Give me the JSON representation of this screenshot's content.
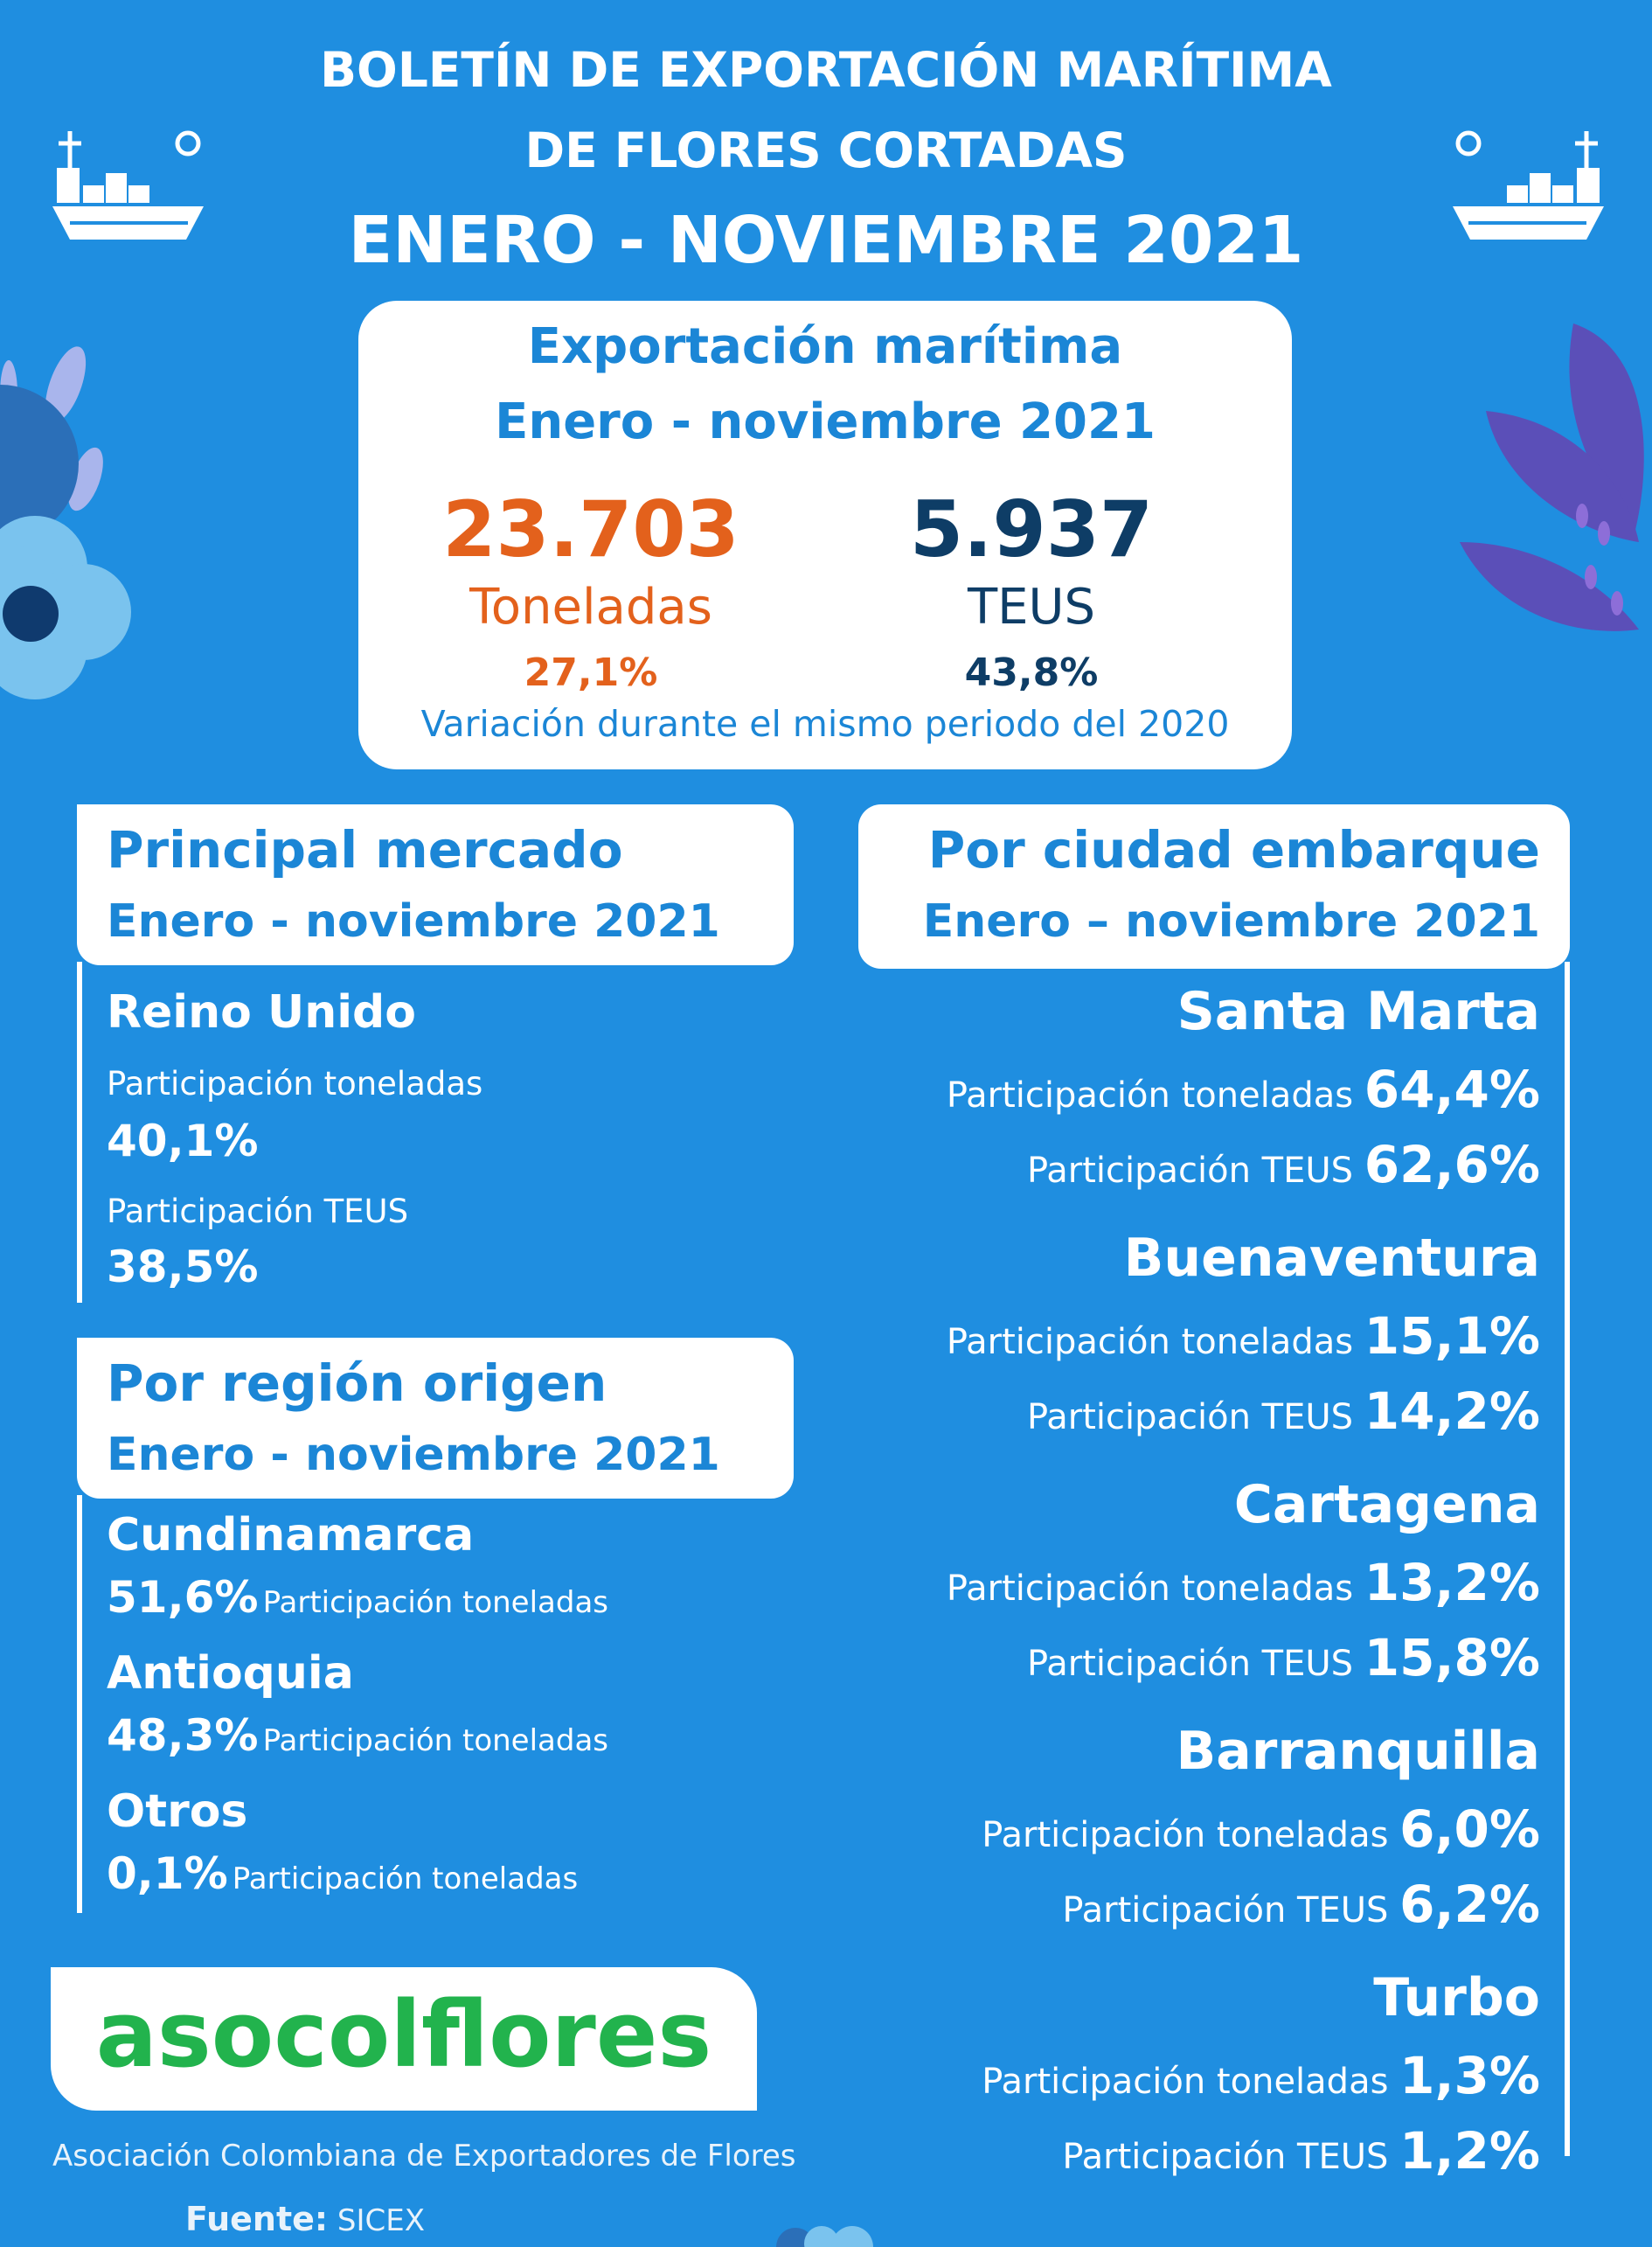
{
  "header": {
    "line1": "BOLETÍN DE EXPORTACIÓN MARÍTIMA",
    "line2": "DE FLORES CORTADAS",
    "line3": "ENERO - NOVIEMBRE 2021"
  },
  "summary": {
    "heading1": "Exportación marítima",
    "heading2": "Enero - noviembre 2021",
    "tons_value": "23.703",
    "tons_unit": "Toneladas",
    "tons_variation": "27,1%",
    "teus_value": "5.937",
    "teus_unit": "TEUS",
    "teus_variation": "43,8%",
    "note": "Variación durante el mismo periodo del 2020"
  },
  "market": {
    "heading1": "Principal mercado",
    "heading2": "Enero - noviembre 2021",
    "country": "Reino Unido",
    "tons_label": "Participación toneladas",
    "tons_value": "40,1%",
    "teus_label": "Participación TEUS",
    "teus_value": "38,5%"
  },
  "region": {
    "heading1": "Por región origen",
    "heading2": "Enero - noviembre 2021",
    "items": [
      {
        "name": "Cundinamarca",
        "value": "51,6%",
        "label": "Participación toneladas"
      },
      {
        "name": "Antioquia",
        "value": "48,3%",
        "label": "Participación toneladas"
      },
      {
        "name": "Otros",
        "value": "0,1%",
        "label": "Participación toneladas"
      }
    ]
  },
  "city": {
    "heading1": "Por ciudad embarque",
    "heading2": "Enero – noviembre  2021",
    "tons_label": "Participación toneladas",
    "teus_label": "Participación TEUS",
    "items": [
      {
        "name": "Santa Marta",
        "tons": "64,4%",
        "teus": "62,6%"
      },
      {
        "name": "Buenaventura",
        "tons": "15,1%",
        "teus": "14,2%"
      },
      {
        "name": "Cartagena",
        "tons": "13,2%",
        "teus": "15,8%"
      },
      {
        "name": "Barranquilla",
        "tons": "6,0%",
        "teus": "6,2%"
      },
      {
        "name": "Turbo",
        "tons": "1,3%",
        "teus": "1,2%"
      }
    ]
  },
  "footer": {
    "logo": "asocolflores",
    "association": "Asociación Colombiana de Exportadores de Flores",
    "source_label": "Fuente:",
    "source_value": "SICEX"
  },
  "colors": {
    "background": "#1f8ee0",
    "accent_orange": "#e3611c",
    "accent_navy": "#0e3d66",
    "logo_green": "#22b34d"
  },
  "icons": [
    "ship-icon",
    "flower-decoration",
    "leaf-decoration"
  ]
}
